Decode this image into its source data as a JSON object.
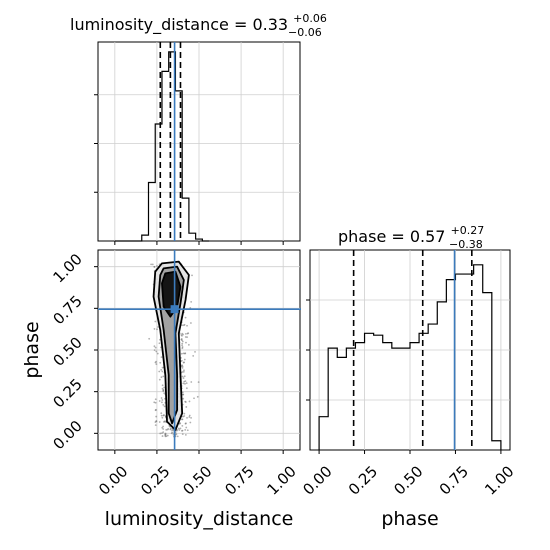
{
  "chart_data": [
    {
      "type": "histogram",
      "panel": "top-left",
      "title_base": "luminosity_distance = 0.33",
      "title_sup": "+0.06",
      "title_sub": "−0.06",
      "xlim": [
        -0.1,
        1.1
      ],
      "bin_edges": [
        0.0,
        0.04,
        0.08,
        0.12,
        0.16,
        0.2,
        0.24,
        0.28,
        0.32,
        0.36,
        0.4,
        0.44,
        0.48,
        0.52,
        0.56
      ],
      "values": [
        0,
        0,
        0,
        0,
        0.03,
        0.3,
        0.6,
        0.87,
        0.97,
        0.77,
        0.22,
        0.04,
        0.01,
        0
      ],
      "quantile_lines": [
        0.27,
        0.33,
        0.39
      ],
      "truth": 0.355,
      "grid": true
    },
    {
      "type": "histogram",
      "panel": "bottom-right",
      "title_base": "phase = 0.57",
      "title_sup": "+0.27",
      "title_sub": "−0.38",
      "xlabel": "phase",
      "xlim": [
        -0.05,
        1.05
      ],
      "xticks": [
        "0.00",
        "0.25",
        "0.50",
        "0.75",
        "1.00"
      ],
      "tick_values": [
        0.0,
        0.25,
        0.5,
        0.75,
        1.0
      ],
      "bin_edges": [
        0.0,
        0.05,
        0.1,
        0.15,
        0.2,
        0.25,
        0.3,
        0.35,
        0.4,
        0.45,
        0.5,
        0.55,
        0.6,
        0.65,
        0.7,
        0.75,
        0.8,
        0.85,
        0.9,
        0.95,
        1.0
      ],
      "values": [
        0.18,
        0.55,
        0.5,
        0.55,
        0.58,
        0.63,
        0.62,
        0.58,
        0.55,
        0.55,
        0.58,
        0.63,
        0.68,
        0.8,
        0.92,
        0.95,
        0.95,
        1.0,
        0.85,
        0.05
      ],
      "quantile_lines": [
        0.19,
        0.57,
        0.84
      ],
      "truth": 0.745,
      "grid": true
    },
    {
      "type": "scatter",
      "panel": "bottom-left",
      "xlabel": "luminosity_distance",
      "ylabel": "phase",
      "xlim": [
        -0.1,
        1.1
      ],
      "ylim": [
        -0.1,
        1.1
      ],
      "xticks": [
        "0.00",
        "0.25",
        "0.50",
        "0.75",
        "1.00"
      ],
      "yticks": [
        "0.00",
        "0.25",
        "0.50",
        "0.75",
        "1.00"
      ],
      "tick_values": [
        0.0,
        0.25,
        0.5,
        0.75,
        1.0
      ],
      "truth": {
        "x": 0.355,
        "y": 0.745
      },
      "contours": [
        {
          "level": "outer",
          "points": [
            [
              0.28,
              1.02
            ],
            [
              0.38,
              1.03
            ],
            [
              0.44,
              0.95
            ],
            [
              0.42,
              0.8
            ],
            [
              0.38,
              0.6
            ],
            [
              0.39,
              0.35
            ],
            [
              0.4,
              0.12
            ],
            [
              0.36,
              0.02
            ],
            [
              0.31,
              0.07
            ],
            [
              0.3,
              0.35
            ],
            [
              0.27,
              0.62
            ],
            [
              0.23,
              0.82
            ],
            [
              0.24,
              0.97
            ]
          ]
        },
        {
          "level": "middle",
          "points": [
            [
              0.29,
              0.99
            ],
            [
              0.37,
              1.0
            ],
            [
              0.41,
              0.92
            ],
            [
              0.39,
              0.78
            ],
            [
              0.36,
              0.6
            ],
            [
              0.37,
              0.35
            ],
            [
              0.37,
              0.14
            ],
            [
              0.34,
              0.06
            ],
            [
              0.32,
              0.12
            ],
            [
              0.32,
              0.35
            ],
            [
              0.29,
              0.62
            ],
            [
              0.26,
              0.82
            ],
            [
              0.27,
              0.95
            ]
          ]
        },
        {
          "level": "inner",
          "points": [
            [
              0.3,
              0.96
            ],
            [
              0.36,
              0.97
            ],
            [
              0.39,
              0.88
            ],
            [
              0.37,
              0.76
            ],
            [
              0.33,
              0.7
            ],
            [
              0.29,
              0.76
            ],
            [
              0.28,
              0.9
            ]
          ]
        }
      ],
      "grid": true
    }
  ]
}
